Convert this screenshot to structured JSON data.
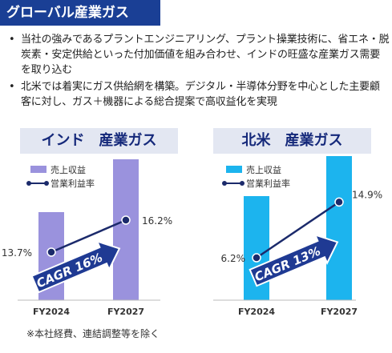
{
  "header": {
    "title": "グローバル産業ガス"
  },
  "bullets": [
    "当社の強みであるプラントエンジニアリング、プラント操業技術に、省エネ・脱炭素・安定供給といった付加価値を組み合わせ、インドの旺盛な産業ガス需要を取り込む",
    "北米では着実にガス供給網を構築。デジタル・半導体分野を中心とした主要顧客に対し、ガス＋機器による総合提案で高収益化を実現"
  ],
  "bullet_marker": "•",
  "footnote": "※本社経費、連結調整等を除く",
  "colors": {
    "header_bg": "#1a3f95",
    "india_bar": "#9a92dd",
    "na_bar": "#1cb4ee",
    "line": "#1b2a6b",
    "cagr_arrow": "#1f3a93"
  },
  "chart_data": [
    {
      "type": "bar",
      "title": "インド　産業ガス",
      "categories": [
        "FY2024",
        "FY2027"
      ],
      "series": [
        {
          "name": "売上収益",
          "type": "bar",
          "values": [
            5.5,
            8.8
          ]
        },
        {
          "name": "営業利益率",
          "type": "line",
          "values": [
            13.7,
            16.2
          ],
          "labels": [
            "13.7%",
            "16.2%"
          ]
        }
      ],
      "annotation": "CAGR 16%",
      "legend_position": "top-left"
    },
    {
      "type": "bar",
      "title": "北米　産業ガス",
      "categories": [
        "FY2024",
        "FY2027"
      ],
      "series": [
        {
          "name": "売上収益",
          "type": "bar",
          "values": [
            6.5,
            9.7
          ]
        },
        {
          "name": "営業利益率",
          "type": "line",
          "values": [
            6.2,
            14.9
          ],
          "labels": [
            "6.2%",
            "14.9%"
          ]
        }
      ],
      "annotation": "CAGR 13%",
      "legend_position": "top-left"
    }
  ]
}
